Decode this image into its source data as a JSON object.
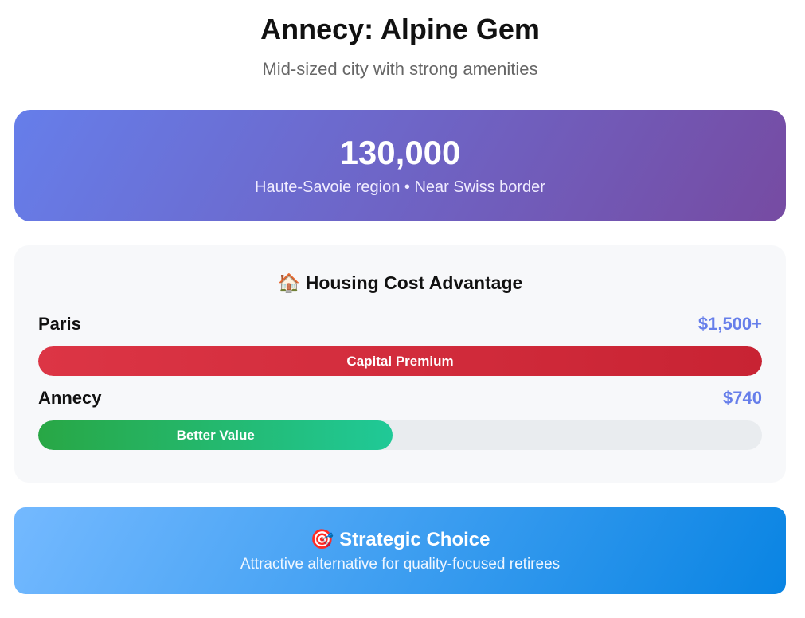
{
  "header": {
    "title": "Annecy: Alpine Gem",
    "subtitle": "Mid-sized city with strong amenities"
  },
  "hero": {
    "population": "130,000",
    "description": "Haute-Savoie region • Near Swiss border",
    "gradient": [
      "#667eea",
      "#764ba2"
    ]
  },
  "housing": {
    "icon": "house-icon",
    "icon_glyph": "🏠",
    "title": "Housing Cost Advantage",
    "rows": [
      {
        "city": "Paris",
        "cost": "$1,500+",
        "bar_label": "Capital Premium",
        "fill_percent": 100,
        "color": "#dc3545"
      },
      {
        "city": "Annecy",
        "cost": "$740",
        "bar_label": "Better Value",
        "fill_percent": 49,
        "color": "#28a745"
      }
    ]
  },
  "strategy": {
    "icon": "target-icon",
    "icon_glyph": "🎯",
    "title": "Strategic Choice",
    "text": "Attractive alternative for quality-focused retirees"
  }
}
